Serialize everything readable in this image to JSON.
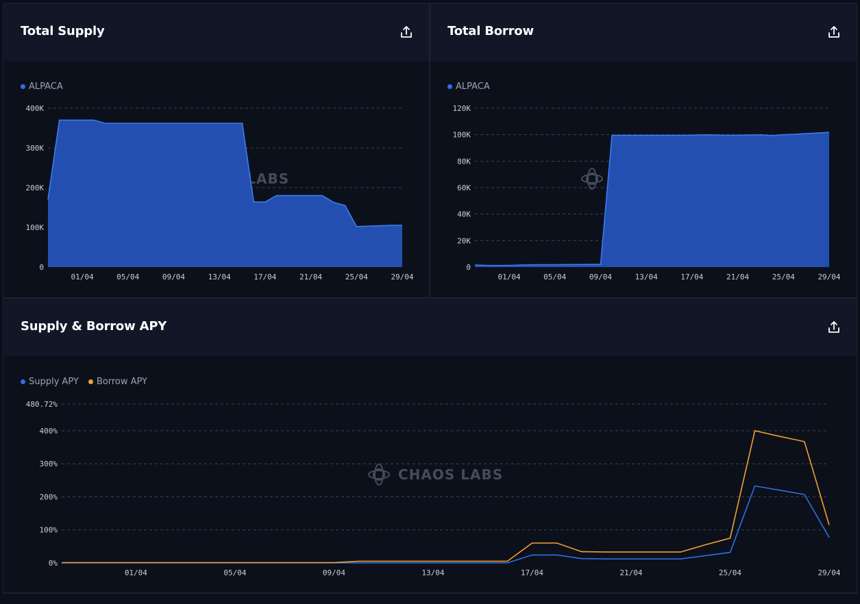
{
  "colors": {
    "supply": "#2f6fe4",
    "borrow": "#f5a030",
    "area": "#2350b0"
  },
  "watermark": "CHAOS LABS",
  "panels": {
    "total_supply": {
      "title": "Total Supply",
      "legend": [
        "ALPACA"
      ]
    },
    "total_borrow": {
      "title": "Total Borrow",
      "legend": [
        "ALPACA"
      ]
    },
    "apy": {
      "title": "Supply & Borrow APY",
      "legend": [
        "Supply APY",
        "Borrow APY"
      ]
    }
  },
  "chart_data": [
    {
      "type": "area",
      "x_ticks": [
        "01/04",
        "05/04",
        "09/04",
        "13/04",
        "17/04",
        "21/04",
        "25/04",
        "29/04"
      ],
      "y_ticks": [
        "0",
        "100K",
        "200K",
        "300K",
        "400K"
      ],
      "ylim": [
        0,
        400000
      ],
      "series": [
        {
          "name": "ALPACA",
          "x": [
            "29/03",
            "30/03",
            "31/03",
            "01/04",
            "02/04",
            "03/04",
            "04/04",
            "05/04",
            "06/04",
            "07/04",
            "08/04",
            "09/04",
            "10/04",
            "11/04",
            "12/04",
            "13/04",
            "14/04",
            "15/04",
            "16/04",
            "17/04",
            "18/04",
            "19/04",
            "20/04",
            "21/04",
            "22/04",
            "23/04",
            "24/04",
            "25/04",
            "26/04",
            "27/04",
            "28/04",
            "29/04"
          ],
          "values": [
            170000,
            370000,
            370000,
            370000,
            370000,
            362000,
            362000,
            362000,
            362000,
            362000,
            362000,
            362000,
            362000,
            362000,
            362000,
            362000,
            362000,
            362000,
            164000,
            164000,
            180000,
            180000,
            180000,
            180000,
            180000,
            163000,
            155000,
            102000,
            103000,
            104000,
            105000,
            105000
          ]
        }
      ]
    },
    {
      "type": "area",
      "x_ticks": [
        "01/04",
        "05/04",
        "09/04",
        "13/04",
        "17/04",
        "21/04",
        "25/04",
        "29/04"
      ],
      "y_ticks": [
        "0",
        "20K",
        "40K",
        "60K",
        "80K",
        "100K",
        "120K"
      ],
      "ylim": [
        0,
        120000
      ],
      "series": [
        {
          "name": "ALPACA",
          "x": [
            "29/03",
            "30/03",
            "31/03",
            "01/04",
            "02/04",
            "03/04",
            "04/04",
            "05/04",
            "06/04",
            "07/04",
            "08/04",
            "09/04",
            "10/04",
            "11/04",
            "12/04",
            "13/04",
            "14/04",
            "15/04",
            "16/04",
            "17/04",
            "18/04",
            "19/04",
            "20/04",
            "21/04",
            "22/04",
            "23/04",
            "24/04",
            "25/04",
            "26/04",
            "27/04",
            "28/04",
            "29/04"
          ],
          "values": [
            1500,
            1300,
            1200,
            1300,
            1500,
            1800,
            1800,
            1800,
            1900,
            1900,
            2000,
            2000,
            99500,
            99500,
            99500,
            99500,
            99500,
            99500,
            99500,
            99600,
            99900,
            99800,
            99500,
            99600,
            99700,
            99900,
            99300,
            100000,
            100300,
            100800,
            101300,
            101800
          ]
        }
      ]
    },
    {
      "type": "line",
      "x_ticks": [
        "01/04",
        "05/04",
        "09/04",
        "13/04",
        "17/04",
        "21/04",
        "25/04",
        "29/04"
      ],
      "y_ticks": [
        "0%",
        "100%",
        "200%",
        "300%",
        "400%",
        "480.72%"
      ],
      "ylim": [
        0,
        480.72
      ],
      "x": [
        "29/03",
        "30/03",
        "31/03",
        "01/04",
        "02/04",
        "03/04",
        "04/04",
        "05/04",
        "06/04",
        "07/04",
        "08/04",
        "09/04",
        "10/04",
        "11/04",
        "12/04",
        "13/04",
        "14/04",
        "15/04",
        "16/04",
        "17/04",
        "18/04",
        "19/04",
        "20/04",
        "21/04",
        "22/04",
        "23/04",
        "24/04",
        "25/04",
        "26/04",
        "27/04",
        "28/04",
        "29/04"
      ],
      "series": [
        {
          "name": "Supply APY",
          "values": [
            0,
            0,
            0,
            0,
            0,
            0,
            0,
            0,
            0,
            0,
            0,
            0,
            0,
            0,
            0,
            0,
            0,
            0,
            0,
            24,
            24,
            13,
            12,
            12,
            12,
            12,
            22,
            32,
            233,
            220,
            207,
            77
          ]
        },
        {
          "name": "Borrow APY",
          "values": [
            1,
            1,
            1,
            1,
            1,
            1,
            1,
            1,
            1,
            1,
            1,
            1,
            5,
            5,
            5,
            5,
            5,
            5,
            5,
            60,
            60,
            34,
            33,
            33,
            33,
            33,
            55,
            75,
            400,
            383,
            367,
            115
          ]
        }
      ]
    }
  ]
}
